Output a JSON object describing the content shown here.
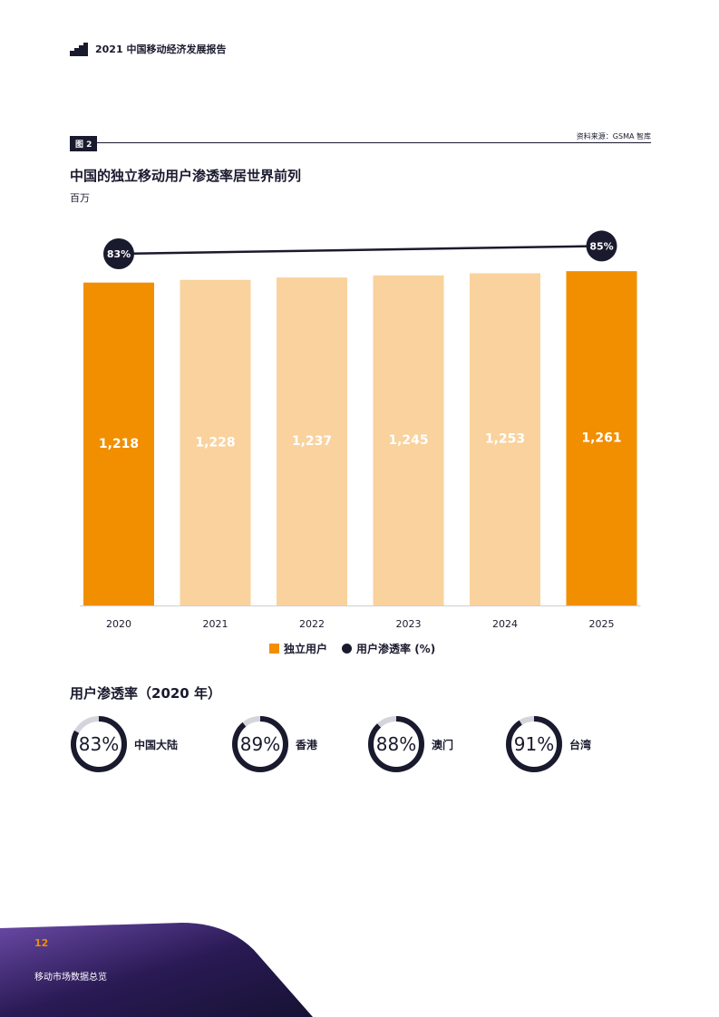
{
  "header": {
    "title": "2021 中国移动经济发展报告"
  },
  "figure": {
    "label": "图 2",
    "source": "资料来源：GSMA 智库",
    "title": "中国的独立移动用户渗透率居世界前列",
    "unit": "百万"
  },
  "legend": {
    "bars": "独立用户",
    "line": "用户渗透率 (%)"
  },
  "chart_data": {
    "type": "bar",
    "categories": [
      "2020",
      "2021",
      "2022",
      "2023",
      "2024",
      "2025"
    ],
    "series": [
      {
        "name": "独立用户",
        "values": [
          1218,
          1228,
          1237,
          1245,
          1253,
          1261
        ]
      },
      {
        "name": "用户渗透率 (%)",
        "type": "line",
        "points": [
          {
            "x": "2020",
            "y": 83,
            "label": "83%"
          },
          {
            "x": "2025",
            "y": 85,
            "label": "85%"
          }
        ]
      }
    ],
    "value_labels": [
      "1,218",
      "1,228",
      "1,237",
      "1,245",
      "1,253",
      "1,261"
    ],
    "title": "中国的独立移动用户渗透率居世界前列",
    "ylabel": "百万",
    "highlight": [
      "2020",
      "2025"
    ],
    "colors": {
      "highlight": "#f18f00",
      "projection": "#f9d29e",
      "line": "#1a1a2e"
    }
  },
  "penetration": {
    "title": "用户渗透率（2020 年）",
    "items": [
      {
        "region": "中国大陆",
        "percent": 83,
        "label": "83%"
      },
      {
        "region": "香港",
        "percent": 89,
        "label": "89%"
      },
      {
        "region": "澳门",
        "percent": 88,
        "label": "88%"
      },
      {
        "region": "台湾",
        "percent": 91,
        "label": "91%"
      }
    ]
  },
  "footer": {
    "page": "12",
    "section": "移动市场数据总览"
  }
}
